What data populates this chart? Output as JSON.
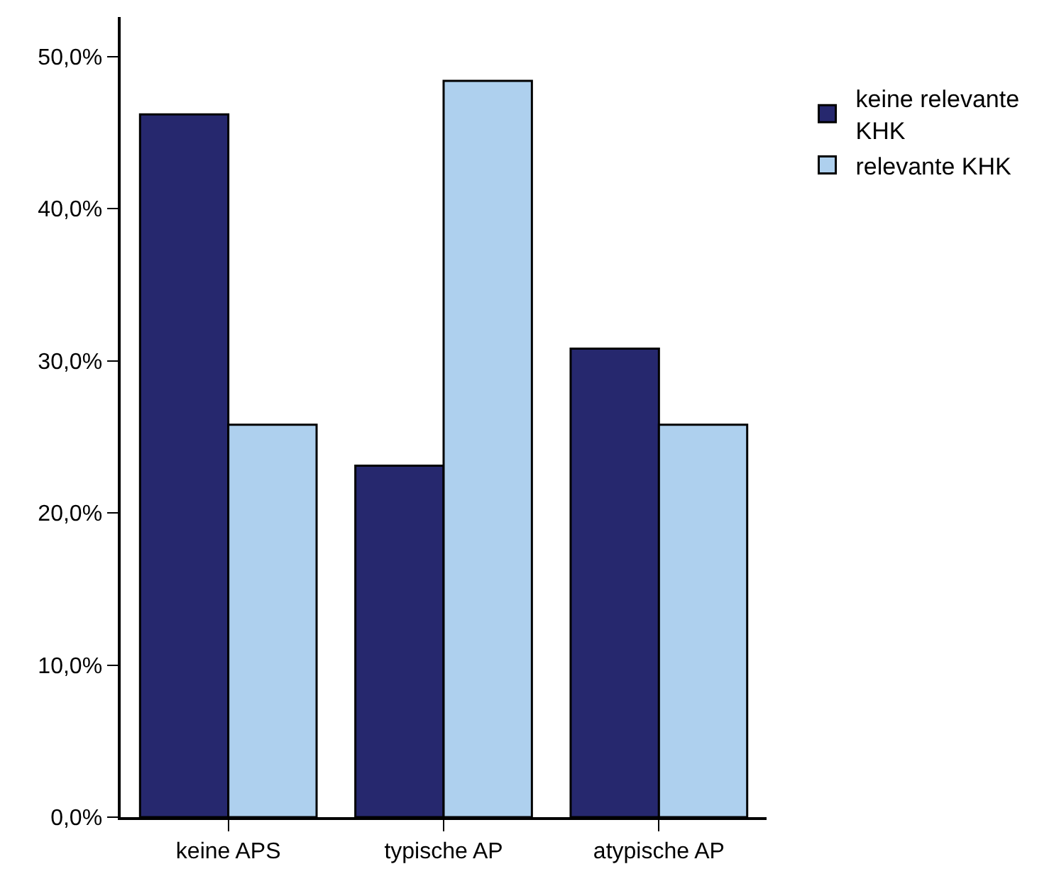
{
  "chart_data": {
    "type": "bar",
    "categories": [
      "keine APS",
      "typische AP",
      "atypische AP"
    ],
    "series": [
      {
        "name": "keine relevante KHK",
        "color": "#26286e",
        "values": [
          46.2,
          23.1,
          30.8
        ]
      },
      {
        "name": "relevante KHK",
        "color": "#aed0ee",
        "values": [
          25.8,
          48.4,
          25.8
        ]
      }
    ],
    "ylim": [
      0,
      52.6
    ],
    "yticks": [
      {
        "value": 0,
        "label": "0,0%"
      },
      {
        "value": 10,
        "label": "10,0%"
      },
      {
        "value": 20,
        "label": "20,0%"
      },
      {
        "value": 30,
        "label": "30,0%"
      },
      {
        "value": 40,
        "label": "40,0%"
      },
      {
        "value": 50,
        "label": "50,0%"
      }
    ],
    "grid": false,
    "legend": "top right"
  }
}
